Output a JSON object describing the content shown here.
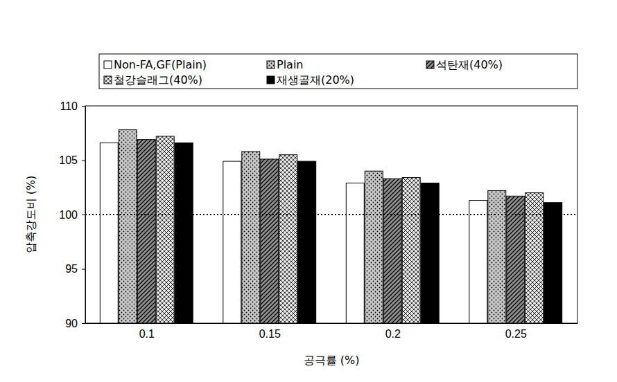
{
  "chart_data": {
    "type": "bar",
    "x_label": "공극률 (%)",
    "y_label": "압축강도비 (%)",
    "categories": [
      "0.1",
      "0.15",
      "0.2",
      "0.25"
    ],
    "series": [
      {
        "name": "Non-FA,GF(Plain)",
        "color": "#ffffff",
        "values": [
          106.6,
          104.9,
          102.9,
          101.3
        ]
      },
      {
        "name": "Plain",
        "color": "#c8c8c8",
        "values": [
          107.8,
          105.8,
          104.0,
          102.2
        ]
      },
      {
        "name": "석탄재(40%)",
        "color": "#909090",
        "values": [
          106.9,
          105.1,
          103.3,
          101.7
        ]
      },
      {
        "name": "철강슬래그(40%)",
        "color": "#e8e8e8",
        "values": [
          107.2,
          105.5,
          103.4,
          102.0
        ]
      },
      {
        "name": "재생골재(20%)",
        "color": "#000000",
        "values": [
          106.6,
          104.9,
          102.9,
          101.1
        ]
      }
    ],
    "ylim": [
      90,
      110
    ],
    "yticks": [
      90,
      95,
      100,
      105,
      110
    ],
    "reference_line": 100,
    "legend": "top",
    "grid": false
  }
}
